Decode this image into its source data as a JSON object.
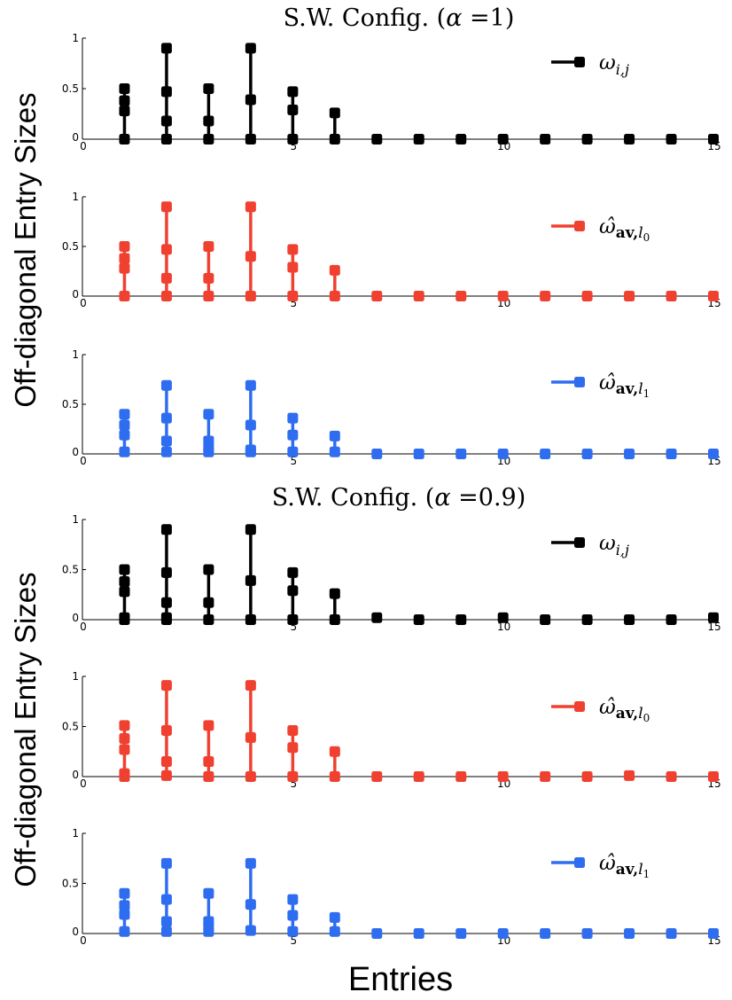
{
  "chart_data": {
    "type": "stem",
    "xlabel": "Entries",
    "ylabel": "Off-diagonal Entry Sizes",
    "groups": [
      {
        "title": "S.W. Config. (α =1)",
        "subplots": [
          {
            "legend": "ωi,j",
            "color": "#000000",
            "xlim": [
              0,
              15
            ],
            "ylim": [
              0,
              1
            ],
            "xticks": [
              "0",
              "5",
              "10",
              "15"
            ],
            "yticks": [
              "0",
              "0.5",
              "1"
            ],
            "points": [
              {
                "x": 1,
                "y": [
                  0.5,
                  0.38,
                  0.28,
                  0
                ]
              },
              {
                "x": 2,
                "y": [
                  0.9,
                  0.47,
                  0.18,
                  0
                ]
              },
              {
                "x": 3,
                "y": [
                  0.5,
                  0.18,
                  0
                ]
              },
              {
                "x": 4,
                "y": [
                  0.9,
                  0.39,
                  0
                ]
              },
              {
                "x": 5,
                "y": [
                  0.47,
                  0.29,
                  0
                ]
              },
              {
                "x": 6,
                "y": [
                  0.26,
                  0
                ]
              },
              {
                "x": 7,
                "y": [
                  0
                ]
              },
              {
                "x": 8,
                "y": [
                  0
                ]
              },
              {
                "x": 9,
                "y": [
                  0
                ]
              },
              {
                "x": 10,
                "y": [
                  0
                ]
              },
              {
                "x": 11,
                "y": [
                  0
                ]
              },
              {
                "x": 12,
                "y": [
                  0
                ]
              },
              {
                "x": 13,
                "y": [
                  0
                ]
              },
              {
                "x": 14,
                "y": [
                  0
                ]
              },
              {
                "x": 15,
                "y": [
                  0
                ]
              }
            ]
          },
          {
            "legend": "ω̂av,l0",
            "color": "#f04030",
            "xlim": [
              0,
              15
            ],
            "ylim": [
              0,
              1
            ],
            "xticks": [
              "0",
              "5",
              "10",
              "15"
            ],
            "yticks": [
              "0",
              "0.5",
              "1"
            ],
            "points": [
              {
                "x": 1,
                "y": [
                  0.5,
                  0.38,
                  0.28,
                  0
                ]
              },
              {
                "x": 2,
                "y": [
                  0.9,
                  0.47,
                  0.18,
                  0
                ]
              },
              {
                "x": 3,
                "y": [
                  0.5,
                  0.18,
                  0
                ]
              },
              {
                "x": 4,
                "y": [
                  0.9,
                  0.4,
                  0
                ]
              },
              {
                "x": 5,
                "y": [
                  0.47,
                  0.29,
                  0
                ]
              },
              {
                "x": 6,
                "y": [
                  0.26,
                  0
                ]
              },
              {
                "x": 7,
                "y": [
                  0
                ]
              },
              {
                "x": 8,
                "y": [
                  0
                ]
              },
              {
                "x": 9,
                "y": [
                  0
                ]
              },
              {
                "x": 10,
                "y": [
                  0
                ]
              },
              {
                "x": 11,
                "y": [
                  0
                ]
              },
              {
                "x": 12,
                "y": [
                  0
                ]
              },
              {
                "x": 13,
                "y": [
                  0
                ]
              },
              {
                "x": 14,
                "y": [
                  0
                ]
              },
              {
                "x": 15,
                "y": [
                  0
                ]
              }
            ]
          },
          {
            "legend": "ω̂av,l1",
            "color": "#2f6df0",
            "xlim": [
              0,
              15
            ],
            "ylim": [
              0,
              1
            ],
            "xticks": [
              "0",
              "5",
              "10",
              "15"
            ],
            "yticks": [
              "0",
              "0.5",
              "1"
            ],
            "points": [
              {
                "x": 1,
                "y": [
                  0.4,
                  0.29,
                  0.19,
                  0.02
                ]
              },
              {
                "x": 2,
                "y": [
                  0.69,
                  0.36,
                  0.13,
                  0.02
                ]
              },
              {
                "x": 3,
                "y": [
                  0.4,
                  0.13,
                  0.06,
                  0.02
                ]
              },
              {
                "x": 4,
                "y": [
                  0.69,
                  0.29,
                  0.04,
                  0.02
                ]
              },
              {
                "x": 5,
                "y": [
                  0.36,
                  0.19,
                  0.02
                ]
              },
              {
                "x": 6,
                "y": [
                  0.18,
                  0.02
                ]
              },
              {
                "x": 7,
                "y": [
                  0
                ]
              },
              {
                "x": 8,
                "y": [
                  0
                ]
              },
              {
                "x": 9,
                "y": [
                  0
                ]
              },
              {
                "x": 10,
                "y": [
                  0
                ]
              },
              {
                "x": 11,
                "y": [
                  0
                ]
              },
              {
                "x": 12,
                "y": [
                  0
                ]
              },
              {
                "x": 13,
                "y": [
                  0
                ]
              },
              {
                "x": 14,
                "y": [
                  0
                ]
              },
              {
                "x": 15,
                "y": [
                  0
                ]
              }
            ]
          }
        ]
      },
      {
        "title": "S.W. Config. (α =0.9)",
        "subplots": [
          {
            "legend": "ωi,j",
            "color": "#000000",
            "xlim": [
              0,
              15
            ],
            "ylim": [
              0,
              1
            ],
            "xticks": [
              "0",
              "5",
              "10",
              "15"
            ],
            "yticks": [
              "0",
              "0.5",
              "1"
            ],
            "points": [
              {
                "x": 1,
                "y": [
                  0.5,
                  0.38,
                  0.28,
                  0.02,
                  0
                ]
              },
              {
                "x": 2,
                "y": [
                  0.9,
                  0.47,
                  0.17,
                  0.02,
                  0
                ]
              },
              {
                "x": 3,
                "y": [
                  0.5,
                  0.17,
                  0
                ]
              },
              {
                "x": 4,
                "y": [
                  0.9,
                  0.39,
                  0
                ]
              },
              {
                "x": 5,
                "y": [
                  0.47,
                  0.29,
                  0
                ]
              },
              {
                "x": 6,
                "y": [
                  0.26,
                  0
                ]
              },
              {
                "x": 7,
                "y": [
                  0.02
                ]
              },
              {
                "x": 8,
                "y": [
                  0
                ]
              },
              {
                "x": 9,
                "y": [
                  0
                ]
              },
              {
                "x": 10,
                "y": [
                  0.02
                ]
              },
              {
                "x": 11,
                "y": [
                  0
                ]
              },
              {
                "x": 12,
                "y": [
                  0
                ]
              },
              {
                "x": 13,
                "y": [
                  0
                ]
              },
              {
                "x": 14,
                "y": [
                  0
                ]
              },
              {
                "x": 15,
                "y": [
                  0.02
                ]
              }
            ]
          },
          {
            "legend": "ω̂av,l0",
            "color": "#f04030",
            "xlim": [
              0,
              15
            ],
            "ylim": [
              0,
              1
            ],
            "xticks": [
              "0",
              "5",
              "10",
              "15"
            ],
            "yticks": [
              "0",
              "0.5",
              "1"
            ],
            "points": [
              {
                "x": 1,
                "y": [
                  0.51,
                  0.38,
                  0.27,
                  0.03,
                  0
                ]
              },
              {
                "x": 2,
                "y": [
                  0.91,
                  0.46,
                  0.15,
                  0.01
                ]
              },
              {
                "x": 3,
                "y": [
                  0.51,
                  0.15,
                  0
                ]
              },
              {
                "x": 4,
                "y": [
                  0.91,
                  0.39,
                  0
                ]
              },
              {
                "x": 5,
                "y": [
                  0.46,
                  0.29,
                  0
                ]
              },
              {
                "x": 6,
                "y": [
                  0.25,
                  0
                ]
              },
              {
                "x": 7,
                "y": [
                  0
                ]
              },
              {
                "x": 8,
                "y": [
                  0
                ]
              },
              {
                "x": 9,
                "y": [
                  0
                ]
              },
              {
                "x": 10,
                "y": [
                  0
                ]
              },
              {
                "x": 11,
                "y": [
                  0
                ]
              },
              {
                "x": 12,
                "y": [
                  0
                ]
              },
              {
                "x": 13,
                "y": [
                  0.01
                ]
              },
              {
                "x": 14,
                "y": [
                  0
                ]
              },
              {
                "x": 15,
                "y": [
                  0
                ]
              }
            ]
          },
          {
            "legend": "ω̂av,l1",
            "color": "#2f6df0",
            "xlim": [
              0,
              15
            ],
            "ylim": [
              0,
              1
            ],
            "xticks": [
              "0",
              "5",
              "10",
              "15"
            ],
            "yticks": [
              "0",
              "0.5",
              "1"
            ],
            "points": [
              {
                "x": 1,
                "y": [
                  0.4,
                  0.28,
                  0.19,
                  0.02
                ]
              },
              {
                "x": 2,
                "y": [
                  0.7,
                  0.34,
                  0.12,
                  0.02
                ]
              },
              {
                "x": 3,
                "y": [
                  0.4,
                  0.12,
                  0.07,
                  0.02
                ]
              },
              {
                "x": 4,
                "y": [
                  0.7,
                  0.29,
                  0.03
                ]
              },
              {
                "x": 5,
                "y": [
                  0.34,
                  0.18,
                  0.02
                ]
              },
              {
                "x": 6,
                "y": [
                  0.16,
                  0.02
                ]
              },
              {
                "x": 7,
                "y": [
                  0
                ]
              },
              {
                "x": 8,
                "y": [
                  0
                ]
              },
              {
                "x": 9,
                "y": [
                  0
                ]
              },
              {
                "x": 10,
                "y": [
                  0
                ]
              },
              {
                "x": 11,
                "y": [
                  0
                ]
              },
              {
                "x": 12,
                "y": [
                  0
                ]
              },
              {
                "x": 13,
                "y": [
                  0
                ]
              },
              {
                "x": 14,
                "y": [
                  0
                ]
              },
              {
                "x": 15,
                "y": [
                  0
                ]
              }
            ]
          }
        ]
      }
    ]
  }
}
